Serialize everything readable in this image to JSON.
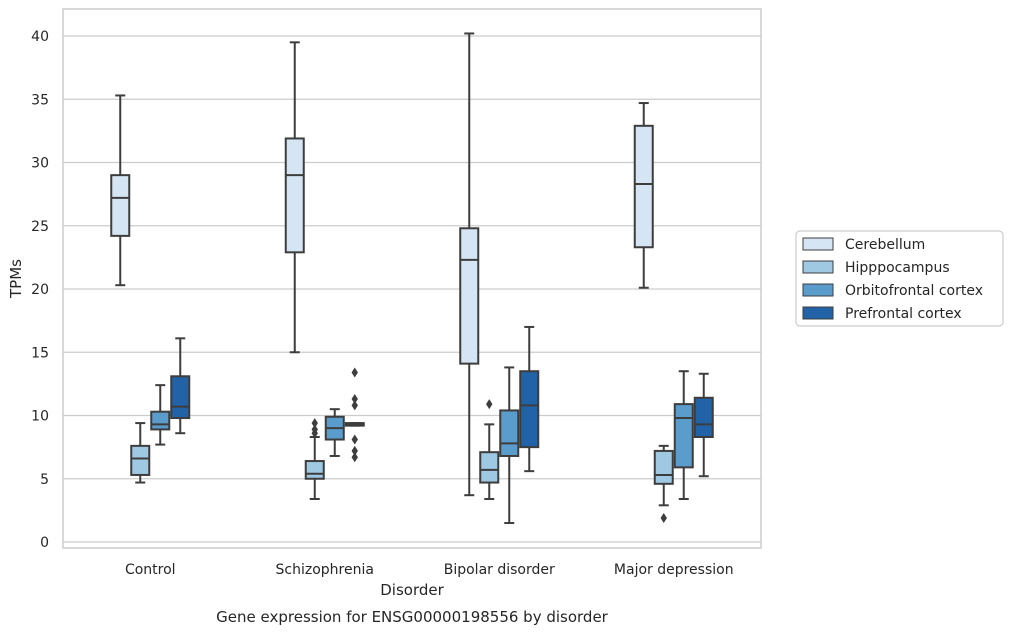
{
  "chart_data": {
    "type": "box",
    "title": "Gene expression for ENSG00000198556 by disorder",
    "xlabel": "Disorder",
    "ylabel": "TPMs",
    "ylim": [
      -0.5,
      42
    ],
    "yticks": [
      0,
      5,
      10,
      15,
      20,
      25,
      30,
      35,
      40
    ],
    "grid": true,
    "legend_position": "right-center",
    "categories": [
      "Control",
      "Schizophrenia",
      "Bipolar disorder",
      "Major depression"
    ],
    "series": [
      {
        "name": "Cerebellum",
        "color": "#d6e5f4",
        "boxes": [
          {
            "whisker_low": 20.3,
            "q1": 24.2,
            "median": 27.2,
            "q3": 29.0,
            "whisker_high": 35.3,
            "outliers": []
          },
          {
            "whisker_low": 15.0,
            "q1": 22.9,
            "median": 29.0,
            "q3": 31.9,
            "whisker_high": 39.5,
            "outliers": []
          },
          {
            "whisker_low": 3.7,
            "q1": 14.1,
            "median": 22.3,
            "q3": 24.8,
            "whisker_high": 40.2,
            "outliers": []
          },
          {
            "whisker_low": 20.1,
            "q1": 23.3,
            "median": 28.3,
            "q3": 32.9,
            "whisker_high": 34.7,
            "outliers": []
          }
        ]
      },
      {
        "name": "Hipppocampus",
        "color": "#9fc8e2",
        "boxes": [
          {
            "whisker_low": 4.7,
            "q1": 5.3,
            "median": 6.6,
            "q3": 7.6,
            "whisker_high": 9.4,
            "outliers": []
          },
          {
            "whisker_low": 3.4,
            "q1": 5.0,
            "median": 5.4,
            "q3": 6.4,
            "whisker_high": 8.3,
            "outliers": [
              8.6,
              8.9,
              9.4
            ]
          },
          {
            "whisker_low": 3.4,
            "q1": 4.7,
            "median": 5.7,
            "q3": 7.1,
            "whisker_high": 9.3,
            "outliers": [
              10.9
            ]
          },
          {
            "whisker_low": 2.9,
            "q1": 4.6,
            "median": 5.3,
            "q3": 7.2,
            "whisker_high": 7.6,
            "outliers": [
              1.9
            ]
          }
        ]
      },
      {
        "name": "Orbitofrontal cortex",
        "color": "#5a9ccc",
        "boxes": [
          {
            "whisker_low": 7.7,
            "q1": 8.9,
            "median": 9.3,
            "q3": 10.3,
            "whisker_high": 12.4,
            "outliers": []
          },
          {
            "whisker_low": 6.8,
            "q1": 8.1,
            "median": 9.0,
            "q3": 9.9,
            "whisker_high": 10.5,
            "outliers": []
          },
          {
            "whisker_low": 1.5,
            "q1": 6.8,
            "median": 7.8,
            "q3": 10.4,
            "whisker_high": 13.8,
            "outliers": []
          },
          {
            "whisker_low": 3.4,
            "q1": 5.9,
            "median": 9.8,
            "q3": 10.9,
            "whisker_high": 13.5,
            "outliers": []
          }
        ]
      },
      {
        "name": "Prefrontal cortex",
        "color": "#2262a7",
        "boxes": [
          {
            "whisker_low": 8.6,
            "q1": 9.8,
            "median": 10.7,
            "q3": 13.1,
            "whisker_high": 16.1,
            "outliers": []
          },
          {
            "whisker_low": 9.2,
            "q1": 9.2,
            "median": 9.3,
            "q3": 9.4,
            "whisker_high": 9.4,
            "outliers": [
              6.7,
              7.2,
              8.1,
              10.8,
              11.3,
              13.4
            ]
          },
          {
            "whisker_low": 5.6,
            "q1": 7.5,
            "median": 10.8,
            "q3": 13.5,
            "whisker_high": 17.0,
            "outliers": []
          },
          {
            "whisker_low": 5.2,
            "q1": 8.3,
            "median": 9.3,
            "q3": 11.4,
            "whisker_high": 13.3,
            "outliers": []
          }
        ]
      }
    ]
  }
}
